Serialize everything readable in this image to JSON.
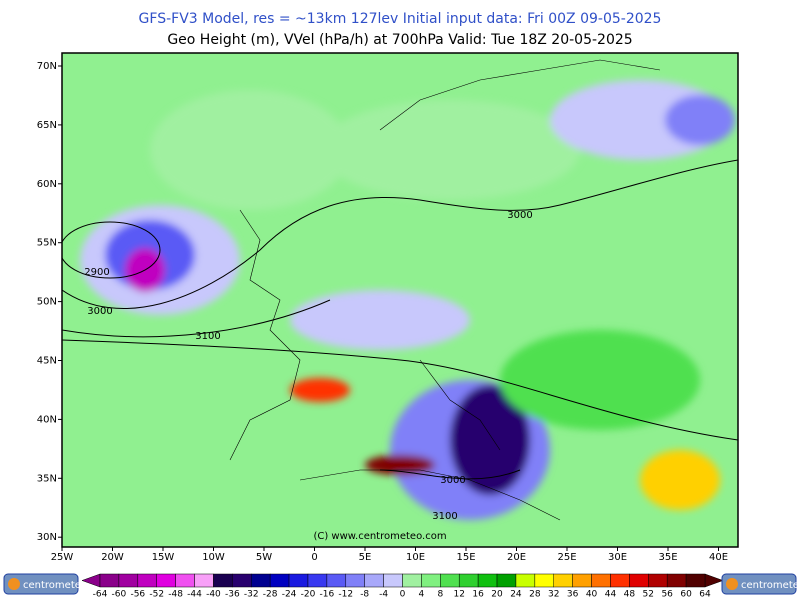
{
  "header": {
    "line1": "GFS-FV3 Model, res = ~13km 127lev    Initial input data: Fri 00Z 09-05-2025",
    "line2": "Geo Height (m), VVel (hPa/h) at 700hPa  Valid: Tue 18Z 20-05-2025"
  },
  "map": {
    "lat_labels": [
      "70N",
      "65N",
      "60N",
      "55N",
      "50N",
      "45N",
      "40N",
      "35N",
      "30N"
    ],
    "lon_labels": [
      "25W",
      "20W",
      "15W",
      "10W",
      "5W",
      "0",
      "5E",
      "10E",
      "15E",
      "20E",
      "25E",
      "30E",
      "35E",
      "40E"
    ],
    "contour_labels": [
      "3000",
      "2900",
      "3000",
      "3100",
      "3000",
      "3100"
    ],
    "credit": "(C) www.centrometeo.com"
  },
  "colorbar": {
    "ticks": [
      -64,
      -60,
      -56,
      -52,
      -48,
      -44,
      -40,
      -36,
      -32,
      -28,
      -24,
      -20,
      -16,
      -12,
      -8,
      -4,
      0,
      4,
      8,
      12,
      16,
      20,
      24,
      28,
      32,
      36,
      40,
      44,
      48,
      52,
      56,
      60,
      64
    ],
    "colors": [
      "#8a008a",
      "#a000a0",
      "#c000c0",
      "#e000e0",
      "#f050f0",
      "#f8a0f8",
      "#1a0050",
      "#28006e",
      "#000090",
      "#0000c0",
      "#1a1ae0",
      "#3838f0",
      "#5a5af5",
      "#8080f8",
      "#a8a8fa",
      "#c8c8fc",
      "#a0f0a0",
      "#80f080",
      "#50e050",
      "#30d030",
      "#10c010",
      "#00a000",
      "#c8ff00",
      "#ffff00",
      "#ffd000",
      "#ffa000",
      "#ff7000",
      "#ff3000",
      "#e00000",
      "#b00000",
      "#800000",
      "#500000"
    ],
    "logo_left": "centrometeo",
    "logo_right": "centrometeo"
  }
}
